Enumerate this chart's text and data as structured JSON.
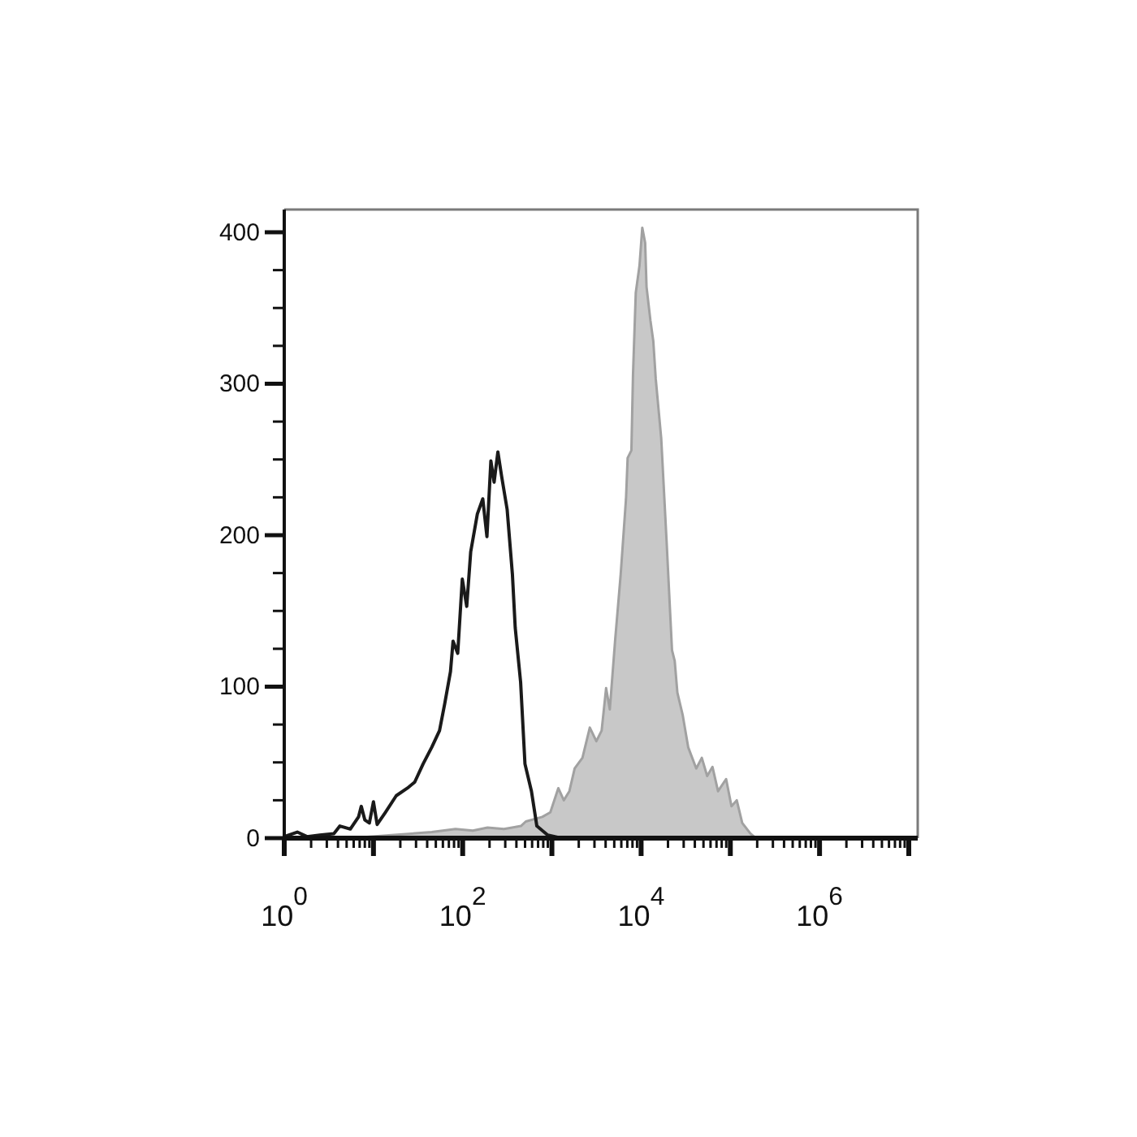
{
  "chart_data": {
    "type": "area",
    "log": "x",
    "xlim": [
      1,
      12600000
    ],
    "ylim": [
      0,
      415
    ],
    "xticks": [
      {
        "value": 1,
        "label": "10$^{0}$"
      },
      {
        "value": 2,
        "label": null
      },
      {
        "value": 3,
        "label": null
      },
      {
        "value": 4,
        "label": null
      },
      {
        "value": 5,
        "label": null
      },
      {
        "value": 6,
        "label": null
      },
      {
        "value": 7,
        "label": null
      },
      {
        "value": 8,
        "label": null
      },
      {
        "value": 9,
        "label": null
      },
      {
        "value": 10,
        "label": null
      },
      {
        "value": 20,
        "label": null
      },
      {
        "value": 30,
        "label": null
      },
      {
        "value": 40,
        "label": null
      },
      {
        "value": 50,
        "label": null
      },
      {
        "value": 60,
        "label": null
      },
      {
        "value": 70,
        "label": null
      },
      {
        "value": 80,
        "label": null
      },
      {
        "value": 90,
        "label": null
      },
      {
        "value": 100,
        "label": "10$^{2}$"
      },
      {
        "value": 200,
        "label": null
      },
      {
        "value": 300,
        "label": null
      },
      {
        "value": 400,
        "label": null
      },
      {
        "value": 500,
        "label": null
      },
      {
        "value": 600,
        "label": null
      },
      {
        "value": 700,
        "label": null
      },
      {
        "value": 800,
        "label": null
      },
      {
        "value": 900,
        "label": null
      },
      {
        "value": 1000,
        "label": null
      },
      {
        "value": 2000,
        "label": null
      },
      {
        "value": 3000,
        "label": null
      },
      {
        "value": 4000,
        "label": null
      },
      {
        "value": 5000,
        "label": null
      },
      {
        "value": 6000,
        "label": null
      },
      {
        "value": 7000,
        "label": null
      },
      {
        "value": 8000,
        "label": null
      },
      {
        "value": 9000,
        "label": null
      },
      {
        "value": 10000,
        "label": "10$^{4}$"
      },
      {
        "value": 20000,
        "label": null
      },
      {
        "value": 30000,
        "label": null
      },
      {
        "value": 40000,
        "label": null
      },
      {
        "value": 50000,
        "label": null
      },
      {
        "value": 60000,
        "label": null
      },
      {
        "value": 70000,
        "label": null
      },
      {
        "value": 80000,
        "label": null
      },
      {
        "value": 90000,
        "label": null
      },
      {
        "value": 100000,
        "label": null
      },
      {
        "value": 200000,
        "label": null
      },
      {
        "value": 300000,
        "label": null
      },
      {
        "value": 400000,
        "label": null
      },
      {
        "value": 500000,
        "label": null
      },
      {
        "value": 600000,
        "label": null
      },
      {
        "value": 700000,
        "label": null
      },
      {
        "value": 800000,
        "label": null
      },
      {
        "value": 900000,
        "label": null
      },
      {
        "value": 1000000,
        "label": "10$^{6}$"
      },
      {
        "value": 2000000,
        "label": null
      },
      {
        "value": 3000000,
        "label": null
      },
      {
        "value": 4000000,
        "label": null
      },
      {
        "value": 5000000,
        "label": null
      },
      {
        "value": 6000000,
        "label": null
      },
      {
        "value": 7000000,
        "label": null
      },
      {
        "value": 8000000,
        "label": null
      },
      {
        "value": 9000000,
        "label": null
      },
      {
        "value": 10000000,
        "label": null
      }
    ],
    "yticks": [
      0,
      {
        "value": 25,
        "label": null
      },
      {
        "value": 50,
        "label": null
      },
      {
        "value": 75,
        "label": null
      },
      100,
      {
        "value": 125,
        "label": null
      },
      {
        "value": 150,
        "label": null
      },
      {
        "value": 175,
        "label": null
      },
      200,
      {
        "value": 225,
        "label": null
      },
      {
        "value": 250,
        "label": null
      },
      {
        "value": 275,
        "label": null
      },
      300,
      {
        "value": 325,
        "label": null
      },
      {
        "value": 350,
        "label": null
      },
      {
        "value": 375,
        "label": null
      },
      400
    ],
    "series": [
      {
        "color": "#c8c8c8",
        "x": [
          5.5,
          16,
          45,
          83,
          130,
          190,
          290,
          450,
          510,
          780,
          960,
          1180,
          1360,
          1570,
          1800,
          2200,
          2660,
          3150,
          3610,
          4050,
          4460,
          5120,
          5900,
          6770,
          7060,
          7780,
          8110,
          8710,
          9590,
          10300,
          11100,
          11500,
          12700,
          13700,
          14600,
          16800,
          19300,
          22200,
          23800,
          25500,
          29300,
          33700,
          41500,
          47900,
          55000,
          63100,
          72800,
          89700,
          103000,
          118000,
          136000,
          168000,
          193000
        ],
        "values": [
          0,
          2,
          4,
          6,
          5,
          7,
          6,
          8,
          11,
          14,
          17,
          33,
          25,
          31,
          46,
          53,
          73,
          64,
          71,
          99,
          85,
          131,
          174,
          224,
          251,
          256,
          306,
          360,
          378,
          403,
          393,
          364,
          342,
          328,
          303,
          264,
          196,
          124,
          117,
          96,
          81,
          60,
          46,
          53,
          41,
          47,
          31,
          39,
          21,
          25,
          10,
          3,
          0
        ]
      },
      {
        "type": "line",
        "color": "#1a1a1a",
        "x": [
          1,
          1.4,
          1.8,
          2.5,
          3.6,
          4.2,
          5.5,
          6.8,
          7.3,
          8,
          9,
          10,
          11,
          13.6,
          18,
          24,
          29,
          36,
          45,
          55,
          63,
          73,
          78,
          88,
          99,
          111,
          123,
          146,
          168,
          187,
          207,
          225,
          248,
          273,
          315,
          361,
          388,
          446,
          499,
          590,
          678,
          897,
          1270
        ],
        "values": [
          1,
          4,
          1,
          2,
          3,
          8,
          6,
          14,
          21,
          12,
          10,
          24,
          9,
          17,
          28,
          33,
          37,
          49,
          60,
          71,
          89,
          110,
          130,
          122,
          171,
          153,
          189,
          214,
          224,
          199,
          249,
          235,
          255,
          239,
          217,
          174,
          139,
          103,
          49,
          31,
          8,
          2,
          0
        ]
      }
    ]
  }
}
